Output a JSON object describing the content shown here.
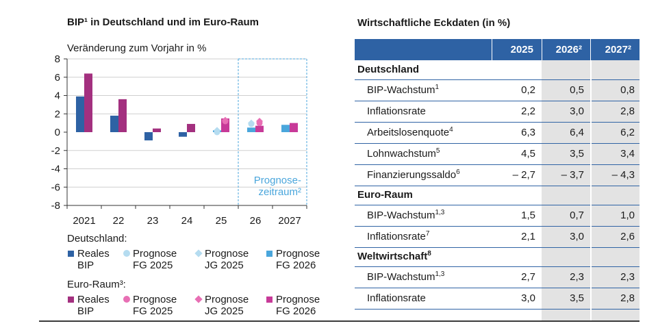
{
  "chart_data": {
    "type": "bar",
    "title": "BIP¹ in Deutschland und im Euro-Raum",
    "subtitle": "Veränderung zum Vorjahr in %",
    "categories": [
      "2021",
      "22",
      "23",
      "24",
      "25",
      "26",
      "2027"
    ],
    "ylim": [
      -8,
      8
    ],
    "yticks": [
      "8",
      "6",
      "4",
      "2",
      "0",
      "-2",
      "-4",
      "-6",
      "-8"
    ],
    "grid": true,
    "forecast_label": [
      "Prognose-",
      "zeitraum²"
    ],
    "series": [
      {
        "name": "Deutschland Reales BIP",
        "values": [
          3.9,
          1.8,
          -0.9,
          -0.5,
          null,
          null,
          null
        ],
        "color": "#2e62a4"
      },
      {
        "name": "Euro-Raum Reales BIP",
        "values": [
          6.4,
          3.6,
          0.4,
          0.9,
          null,
          null,
          null
        ],
        "color": "#a3307f"
      },
      {
        "name": "Deutschland Prognose FG 2025",
        "values": [
          null,
          null,
          null,
          null,
          0.0,
          0.9,
          null
        ],
        "color": "#b5dcf0"
      },
      {
        "name": "Deutschland Prognose JG 2025",
        "values": [
          null,
          null,
          null,
          null,
          0.2,
          1.0,
          null
        ],
        "color": "#b5dcf0"
      },
      {
        "name": "Deutschland Prognose FG 2026",
        "values": [
          null,
          null,
          null,
          null,
          0.2,
          0.5,
          0.8
        ],
        "color": "#4aa6dc"
      },
      {
        "name": "Euro-Raum Prognose FG 2025",
        "values": [
          null,
          null,
          null,
          null,
          1.2,
          1.0,
          null
        ],
        "color": "#e86fb4"
      },
      {
        "name": "Euro-Raum Prognose JG 2025",
        "values": [
          null,
          null,
          null,
          null,
          1.3,
          1.2,
          null
        ],
        "color": "#e86fb4"
      },
      {
        "name": "Euro-Raum Prognose FG 2026",
        "values": [
          null,
          null,
          null,
          null,
          1.5,
          0.7,
          1.0
        ],
        "color": "#c73a98"
      }
    ]
  },
  "legend": {
    "de_header": "Deutschland:",
    "ea_header": "Euro-Raum³:",
    "items": [
      {
        "l1": "Reales",
        "l2": "BIP"
      },
      {
        "l1": "Prognose",
        "l2": "FG 2025"
      },
      {
        "l1": "Prognose",
        "l2": "JG 2025"
      },
      {
        "l1": "Prognose",
        "l2": "FG 2026"
      }
    ]
  },
  "table": {
    "title": "Wirtschaftliche Eckdaten (in %)",
    "headers": [
      "2025",
      "2026²",
      "2027²"
    ],
    "sections": [
      {
        "name": "Deutschland",
        "rows": [
          {
            "label": "BIP-Wachstum",
            "sup": "1",
            "values": [
              "0,2",
              "0,5",
              "0,8"
            ]
          },
          {
            "label": "Inflationsrate",
            "sup": "",
            "values": [
              "2,2",
              "3,0",
              "2,8"
            ]
          },
          {
            "label": "Arbeitslosenquote",
            "sup": "4",
            "values": [
              "6,3",
              "6,4",
              "6,2"
            ]
          },
          {
            "label": "Lohnwachstum",
            "sup": "5",
            "values": [
              "4,5",
              "3,5",
              "3,4"
            ]
          },
          {
            "label": "Finanzierungssaldo",
            "sup": "6",
            "values": [
              "– 2,7",
              "– 3,7",
              "– 4,3"
            ]
          }
        ]
      },
      {
        "name": "Euro-Raum",
        "rows": [
          {
            "label": "BIP-Wachstum",
            "sup": "1,3",
            "values": [
              "1,5",
              "0,7",
              "1,0"
            ]
          },
          {
            "label": "Inflationsrate",
            "sup": "7",
            "values": [
              "2,1",
              "3,0",
              "2,6"
            ]
          }
        ]
      },
      {
        "name": "Weltwirtschaft",
        "sup": "8",
        "rows": [
          {
            "label": "BIP-Wachstum",
            "sup": "1,3",
            "values": [
              "2,7",
              "2,3",
              "2,3"
            ]
          },
          {
            "label": "Inflationsrate",
            "sup": "",
            "values": [
              "3,0",
              "3,5",
              "2,8"
            ]
          }
        ]
      }
    ]
  },
  "colors": {
    "de_bip": "#2e62a4",
    "ea_bip": "#a3307f",
    "de_fg2025": "#b5dcf0",
    "de_jg2025": "#b5dcf0",
    "de_fg2026": "#4aa6dc",
    "ea_fg2025": "#e86fb4",
    "ea_jg2025": "#e86fb4",
    "ea_fg2026": "#c73a98",
    "forecast": "#4aa6dc",
    "table_header": "#2e62a4",
    "table_shade": "#e3e3e3"
  }
}
